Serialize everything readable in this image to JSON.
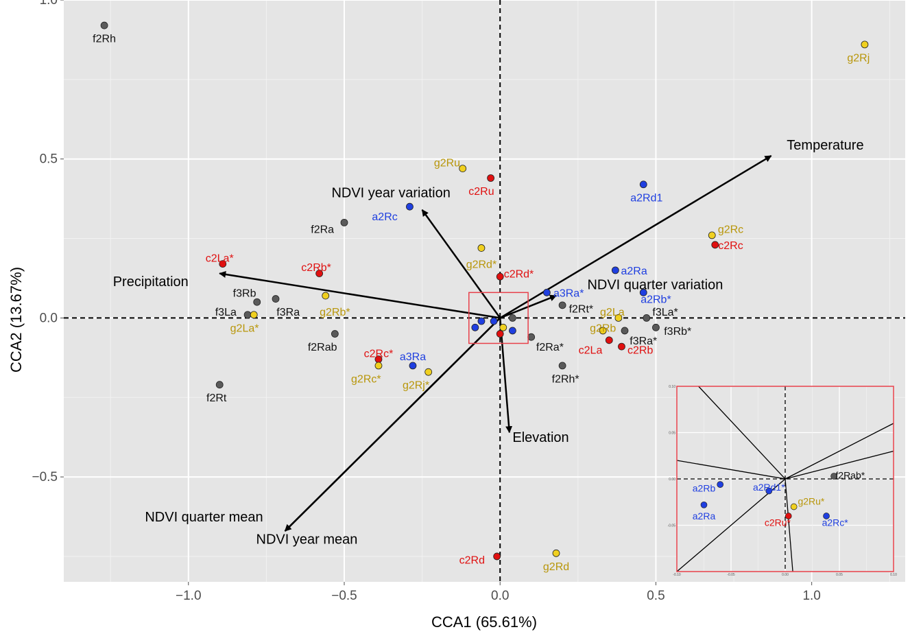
{
  "chart_data": {
    "type": "scatter",
    "subtype": "cca-biplot",
    "title": "",
    "xlabel": "CCA1 (65.61%)",
    "ylabel": "CCA2 (13.67%)",
    "xlim": [
      -1.4,
      1.3
    ],
    "ylim": [
      -0.83,
      1.0
    ],
    "xticks": [
      -1.0,
      -0.5,
      0.0,
      0.5,
      1.0
    ],
    "xtick_labels": [
      "−1.0",
      "−0.5",
      "0.0",
      "0.5",
      "1.0"
    ],
    "yticks": [
      -0.5,
      0.0,
      0.5,
      1.0
    ],
    "ytick_labels": [
      "−0.5",
      "0.0",
      "0.5",
      "1.0"
    ],
    "grid": true,
    "background": "#e5e5e5",
    "colors": {
      "a": "#1f3fe0",
      "c": "#e01010",
      "f": "#5a5a5a",
      "g": "#f0d020"
    },
    "label_colors": {
      "a": "#1f3fe0",
      "c": "#e01010",
      "f": "#111111",
      "g": "#b8960a"
    },
    "points": [
      {
        "label": "f2Rh",
        "group": "f",
        "x": -1.27,
        "y": 0.92,
        "lx": -1.27,
        "ly": 0.88
      },
      {
        "label": "g2Rj",
        "group": "g",
        "x": 1.17,
        "y": 0.86,
        "lx": 1.15,
        "ly": 0.82
      },
      {
        "label": "g2Ru",
        "group": "g",
        "x": -0.12,
        "y": 0.47,
        "lx": -0.17,
        "ly": 0.49
      },
      {
        "label": "c2Ru",
        "group": "c",
        "x": -0.03,
        "y": 0.44,
        "lx": -0.06,
        "ly": 0.4
      },
      {
        "label": "a2Rd1",
        "group": "a",
        "x": 0.46,
        "y": 0.42,
        "lx": 0.47,
        "ly": 0.38
      },
      {
        "label": "a2Rc",
        "group": "a",
        "x": -0.29,
        "y": 0.35,
        "lx": -0.37,
        "ly": 0.32
      },
      {
        "label": "f2Ra",
        "group": "f",
        "x": -0.5,
        "y": 0.3,
        "lx": -0.57,
        "ly": 0.28
      },
      {
        "label": "g2Rc",
        "group": "g",
        "x": 0.68,
        "y": 0.26,
        "lx": 0.74,
        "ly": 0.28
      },
      {
        "label": "c2Rc",
        "group": "c",
        "x": 0.69,
        "y": 0.23,
        "lx": 0.74,
        "ly": 0.23
      },
      {
        "label": "g2Rd*",
        "group": "g",
        "x": -0.06,
        "y": 0.22,
        "lx": -0.06,
        "ly": 0.17
      },
      {
        "label": "c2La*",
        "group": "c",
        "x": -0.89,
        "y": 0.17,
        "lx": -0.9,
        "ly": 0.19
      },
      {
        "label": "c2Rb*",
        "group": "c",
        "x": -0.58,
        "y": 0.14,
        "lx": -0.59,
        "ly": 0.16
      },
      {
        "label": "a2Ra",
        "group": "a",
        "x": 0.37,
        "y": 0.15,
        "lx": 0.43,
        "ly": 0.15
      },
      {
        "label": "c2Rd*",
        "group": "c",
        "x": 0.0,
        "y": 0.13,
        "lx": 0.06,
        "ly": 0.14
      },
      {
        "label": "a3Ra*",
        "group": "a",
        "x": 0.15,
        "y": 0.08,
        "lx": 0.22,
        "ly": 0.08
      },
      {
        "label": "g2Rb*",
        "group": "g",
        "x": -0.56,
        "y": 0.07,
        "lx": -0.53,
        "ly": 0.02
      },
      {
        "label": "f3Rb",
        "group": "f",
        "x": -0.78,
        "y": 0.05,
        "lx": -0.82,
        "ly": 0.08
      },
      {
        "label": "f3Ra",
        "group": "f",
        "x": -0.72,
        "y": 0.06,
        "lx": -0.68,
        "ly": 0.02
      },
      {
        "label": "f3La",
        "group": "f",
        "x": -0.81,
        "y": 0.01,
        "lx": -0.88,
        "ly": 0.02
      },
      {
        "label": "g2La*",
        "group": "g",
        "x": -0.79,
        "y": 0.01,
        "lx": -0.82,
        "ly": -0.03
      },
      {
        "label": "f2Rt*",
        "group": "f",
        "x": 0.2,
        "y": 0.04,
        "lx": 0.26,
        "ly": 0.03
      },
      {
        "label": "a2Rb*",
        "group": "a",
        "x": 0.46,
        "y": 0.08,
        "lx": 0.5,
        "ly": 0.06
      },
      {
        "label": "g2La",
        "group": "g",
        "x": 0.38,
        "y": 0.0,
        "lx": 0.36,
        "ly": 0.02
      },
      {
        "label": "f3La*",
        "group": "f",
        "x": 0.47,
        "y": 0.0,
        "lx": 0.53,
        "ly": 0.02
      },
      {
        "label": "f3Rb*",
        "group": "f",
        "x": 0.5,
        "y": -0.03,
        "lx": 0.57,
        "ly": -0.04
      },
      {
        "label": "g2Rb",
        "group": "g",
        "x": 0.33,
        "y": -0.04,
        "lx": 0.33,
        "ly": -0.03
      },
      {
        "label": "f3Ra*",
        "group": "f",
        "x": 0.4,
        "y": -0.04,
        "lx": 0.46,
        "ly": -0.07
      },
      {
        "label": "c2La",
        "group": "c",
        "x": 0.35,
        "y": -0.07,
        "lx": 0.29,
        "ly": -0.1
      },
      {
        "label": "c2Rb",
        "group": "c",
        "x": 0.39,
        "y": -0.09,
        "lx": 0.45,
        "ly": -0.1
      },
      {
        "label": "f2Ra*",
        "group": "f",
        "x": 0.1,
        "y": -0.06,
        "lx": 0.16,
        "ly": -0.09
      },
      {
        "label": "f2Rab",
        "group": "f",
        "x": -0.53,
        "y": -0.05,
        "lx": -0.57,
        "ly": -0.09
      },
      {
        "label": "c2Rc*",
        "group": "c",
        "x": -0.39,
        "y": -0.13,
        "lx": -0.39,
        "ly": -0.11
      },
      {
        "label": "a3Ra",
        "group": "a",
        "x": -0.28,
        "y": -0.15,
        "lx": -0.28,
        "ly": -0.12
      },
      {
        "label": "g2Rc*",
        "group": "g",
        "x": -0.39,
        "y": -0.15,
        "lx": -0.43,
        "ly": -0.19
      },
      {
        "label": "g2Rj*",
        "group": "g",
        "x": -0.23,
        "y": -0.17,
        "lx": -0.27,
        "ly": -0.21
      },
      {
        "label": "f2Rh*",
        "group": "f",
        "x": 0.2,
        "y": -0.15,
        "lx": 0.21,
        "ly": -0.19
      },
      {
        "label": "f2Rt",
        "group": "f",
        "x": -0.9,
        "y": -0.21,
        "lx": -0.91,
        "ly": -0.25
      },
      {
        "label": "c2Rd",
        "group": "c",
        "x": -0.01,
        "y": -0.75,
        "lx": -0.09,
        "ly": -0.76
      },
      {
        "label": "g2Rd",
        "group": "g",
        "x": 0.18,
        "y": -0.74,
        "lx": 0.18,
        "ly": -0.78
      },
      {
        "label": "",
        "group": "a",
        "x": -0.06,
        "y": -0.01
      },
      {
        "label": "",
        "group": "a",
        "x": -0.08,
        "y": -0.03
      },
      {
        "label": "",
        "group": "a",
        "x": -0.02,
        "y": -0.01
      },
      {
        "label": "",
        "group": "a",
        "x": 0.04,
        "y": -0.04
      },
      {
        "label": "",
        "group": "g",
        "x": 0.01,
        "y": -0.03
      },
      {
        "label": "",
        "group": "c",
        "x": 0.0,
        "y": -0.05
      },
      {
        "label": "",
        "group": "f",
        "x": 0.04,
        "y": 0.0
      }
    ],
    "arrows": [
      {
        "label": "Temperature",
        "x": 0.87,
        "y": 0.51,
        "lx": 0.92,
        "ly": 0.53,
        "anchor": "start"
      },
      {
        "label": "NDVI year variation",
        "x": -0.25,
        "y": 0.34,
        "lx": -0.35,
        "ly": 0.38,
        "anchor": "middle"
      },
      {
        "label": "Precipitation",
        "x": -0.9,
        "y": 0.14,
        "lx": -1.0,
        "ly": 0.1,
        "anchor": "end"
      },
      {
        "label": "NDVI quarter variation",
        "x": 0.18,
        "y": 0.07,
        "lx": 0.28,
        "ly": 0.09,
        "anchor": "start"
      },
      {
        "label": "Elevation",
        "x": 0.03,
        "y": -0.36,
        "lx": 0.04,
        "ly": -0.39,
        "anchor": "start"
      },
      {
        "label": "NDVI quarter mean",
        "x": -0.69,
        "y": -0.67,
        "lx": -0.95,
        "ly": -0.64,
        "anchor": "middle"
      },
      {
        "label": "NDVI year mean",
        "x": -0.69,
        "y": -0.67,
        "lx": -0.62,
        "ly": -0.71,
        "anchor": "middle"
      }
    ],
    "zoom_box": {
      "x0": -0.1,
      "x1": 0.09,
      "y0": -0.08,
      "y1": 0.08
    },
    "inset": {
      "xlim": [
        -0.1,
        0.1
      ],
      "ylim": [
        -0.1,
        0.1
      ],
      "xticks": [
        -0.1,
        -0.05,
        0.0,
        0.05,
        0.1
      ],
      "xtick_labels": [
        "-0.10",
        "-0.05",
        "0.00",
        "0.05",
        "0.10"
      ],
      "yticks": [
        0.1,
        0.05,
        0.0,
        -0.05
      ],
      "ytick_labels": [
        "0.10",
        "0.05",
        "0.00",
        "-0.05"
      ],
      "arrow_lines": [
        {
          "x": 0.1,
          "y": 0.06
        },
        {
          "x": 0.1,
          "y": 0.03
        },
        {
          "x": -0.1,
          "y": 0.02
        },
        {
          "x": -0.08,
          "y": 0.1
        },
        {
          "x": -0.1,
          "y": -0.1
        },
        {
          "x": 0.007,
          "y": -0.1
        }
      ],
      "points": [
        {
          "label": "a2Rb",
          "group": "a",
          "x": -0.06,
          "y": -0.006,
          "lx": -0.075,
          "ly": -0.01
        },
        {
          "label": "a2Rd1*",
          "group": "a",
          "x": -0.015,
          "y": -0.013,
          "lx": -0.015,
          "ly": -0.009
        },
        {
          "label": "a2Ra",
          "group": "a",
          "x": -0.075,
          "y": -0.028,
          "lx": -0.075,
          "ly": -0.04
        },
        {
          "label": "f2Rab*",
          "group": "f",
          "x": 0.045,
          "y": 0.003,
          "lx": 0.06,
          "ly": 0.004
        },
        {
          "label": "g2Ru*",
          "group": "g",
          "x": 0.008,
          "y": -0.03,
          "lx": 0.024,
          "ly": -0.024
        },
        {
          "label": "c2Ru*",
          "group": "c",
          "x": 0.003,
          "y": -0.04,
          "lx": -0.007,
          "ly": -0.047
        },
        {
          "label": "a2Rc*",
          "group": "a",
          "x": 0.038,
          "y": -0.04,
          "lx": 0.046,
          "ly": -0.047
        }
      ]
    }
  }
}
